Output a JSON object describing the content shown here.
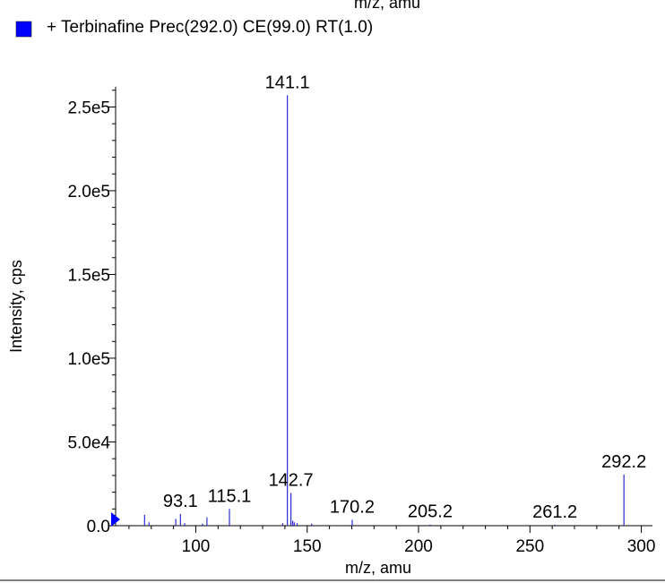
{
  "top_cut_label": "m/z, amu",
  "legend": {
    "swatch_color": "#0000ff",
    "label": "+ Terbinafine Prec(292.0) CE(99.0) RT(1.0)"
  },
  "chart_data": {
    "type": "bar",
    "title": "",
    "xlabel": "m/z, amu",
    "ylabel": "Intensity, cps",
    "xlim": [
      64,
      305
    ],
    "ylim": [
      0,
      262000.0
    ],
    "x_ticks": [
      100,
      150,
      200,
      250,
      300
    ],
    "x_tick_labels": [
      "100",
      "150",
      "200",
      "250",
      "300"
    ],
    "y_ticks": [
      0,
      50000,
      100000,
      150000,
      200000,
      250000
    ],
    "y_tick_labels": [
      "0.0",
      "5.0e4",
      "1.0e5",
      "1.5e5",
      "2.0e5",
      "2.5e5"
    ],
    "grid": false,
    "series": [
      {
        "color": "#2b2bd6",
        "peaks": [
          {
            "mz": 77.0,
            "intensity": 6500
          },
          {
            "mz": 79.0,
            "intensity": 2000
          },
          {
            "mz": 91.0,
            "intensity": 4000
          },
          {
            "mz": 93.1,
            "intensity": 7000
          },
          {
            "mz": 95.0,
            "intensity": 1500
          },
          {
            "mz": 103.0,
            "intensity": 1200
          },
          {
            "mz": 105.0,
            "intensity": 5000
          },
          {
            "mz": 115.1,
            "intensity": 10000
          },
          {
            "mz": 139.0,
            "intensity": 1500
          },
          {
            "mz": 141.1,
            "intensity": 257000
          },
          {
            "mz": 142.7,
            "intensity": 19500
          },
          {
            "mz": 143.5,
            "intensity": 3000
          },
          {
            "mz": 144.2,
            "intensity": 2000
          },
          {
            "mz": 145.5,
            "intensity": 1500
          },
          {
            "mz": 152.0,
            "intensity": 1200
          },
          {
            "mz": 170.2,
            "intensity": 3500
          },
          {
            "mz": 205.2,
            "intensity": 700
          },
          {
            "mz": 261.2,
            "intensity": 600
          },
          {
            "mz": 292.2,
            "intensity": 30500
          }
        ]
      }
    ],
    "peak_labels": [
      {
        "text": "141.1",
        "mz": 141.1,
        "intensity": 257000
      },
      {
        "text": "142.7",
        "mz": 142.7,
        "intensity": 19500
      },
      {
        "text": "93.1",
        "mz": 93.1,
        "intensity": 7000
      },
      {
        "text": "115.1",
        "mz": 115.1,
        "intensity": 10000
      },
      {
        "text": "170.2",
        "mz": 170.2,
        "intensity": 3500
      },
      {
        "text": "205.2",
        "mz": 205.2,
        "intensity": 700
      },
      {
        "text": "261.2",
        "mz": 261.2,
        "intensity": 600
      },
      {
        "text": "292.2",
        "mz": 292.2,
        "intensity": 30500
      }
    ],
    "axis_marker_color": "#0000ff"
  }
}
